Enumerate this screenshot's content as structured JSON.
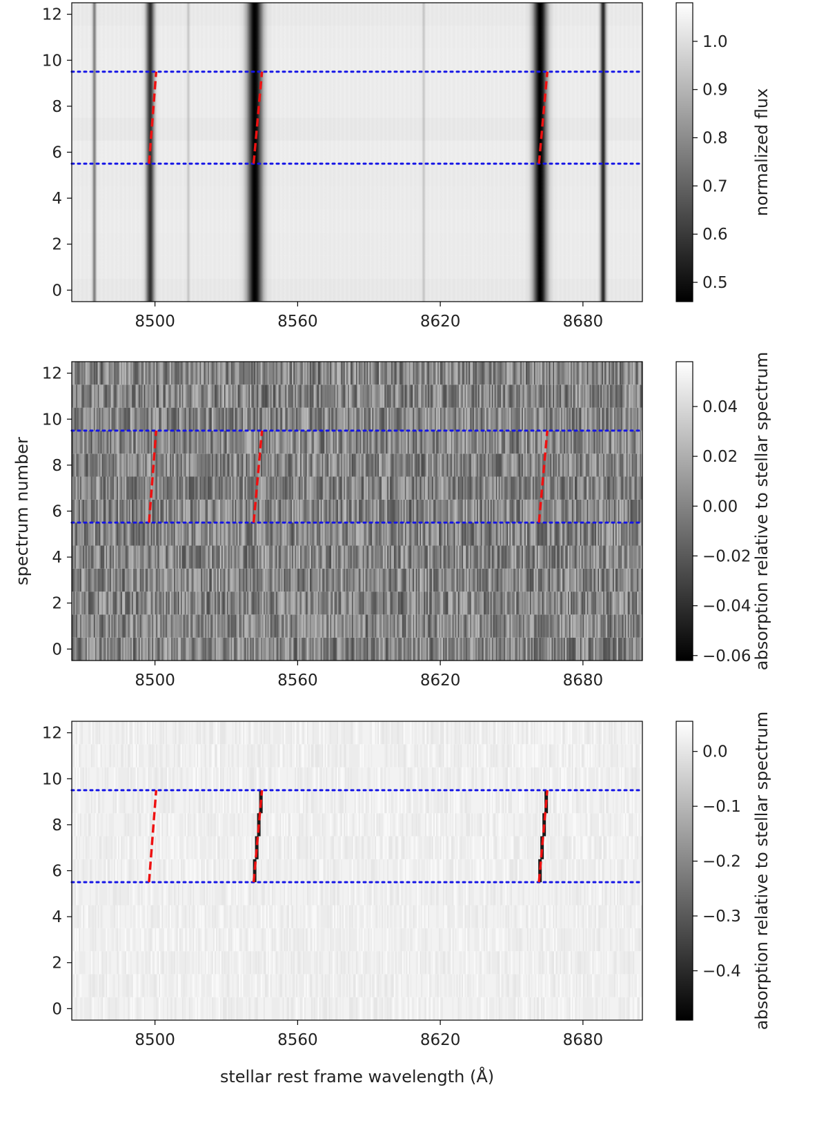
{
  "chart_data": [
    {
      "type": "heatmap",
      "panel": "top",
      "xlim": [
        8465,
        8705
      ],
      "ylim": [
        -0.5,
        12.5
      ],
      "xticks": [
        8500,
        8560,
        8620,
        8680
      ],
      "yticks": [
        0,
        2,
        4,
        6,
        8,
        10,
        12
      ],
      "xlabel": "",
      "ylabel": "",
      "colorbar": {
        "label": "normalized flux",
        "range": [
          0.46,
          1.08
        ],
        "ticks": [
          "0.5",
          "0.6",
          "0.7",
          "0.8",
          "0.9",
          "1.0"
        ]
      },
      "absorption_lines": [
        {
          "wavelength": 8474.5,
          "depth": 0.45,
          "width": 0.5
        },
        {
          "wavelength": 8498.0,
          "depth": 0.75,
          "width": 1.2
        },
        {
          "wavelength": 8514.0,
          "depth": 0.15,
          "width": 0.4
        },
        {
          "wavelength": 8542.0,
          "depth": 0.95,
          "width": 2.2
        },
        {
          "wavelength": 8613.0,
          "depth": 0.15,
          "width": 0.4
        },
        {
          "wavelength": 8662.0,
          "depth": 0.95,
          "width": 2.0
        },
        {
          "wavelength": 8688.5,
          "depth": 0.8,
          "width": 0.8
        }
      ],
      "horizontal_lines": [
        5.5,
        9.5
      ],
      "red_segments": [
        {
          "x": [
            8497.5,
            8500.5
          ],
          "y": [
            5.5,
            9.5
          ]
        },
        {
          "x": [
            8541.5,
            8545.0
          ],
          "y": [
            5.5,
            9.5
          ]
        },
        {
          "x": [
            8661.5,
            8665.0
          ],
          "y": [
            5.5,
            9.5
          ]
        }
      ]
    },
    {
      "type": "heatmap",
      "panel": "middle",
      "xlim": [
        8465,
        8705
      ],
      "ylim": [
        -0.5,
        12.5
      ],
      "xticks": [
        8500,
        8560,
        8620,
        8680
      ],
      "yticks": [
        0,
        2,
        4,
        6,
        8,
        10,
        12
      ],
      "xlabel": "",
      "ylabel": "spectrum number",
      "colorbar": {
        "label": "absorption relative to stellar spectrum",
        "range": [
          -0.062,
          0.058
        ],
        "ticks": [
          "−0.06",
          "−0.04",
          "−0.02",
          "0.00",
          "0.02",
          "0.04"
        ]
      },
      "horizontal_lines": [
        5.5,
        9.5
      ],
      "red_segments": [
        {
          "x": [
            8497.5,
            8500.5
          ],
          "y": [
            5.5,
            9.5
          ]
        },
        {
          "x": [
            8541.5,
            8545.0
          ],
          "y": [
            5.5,
            9.5
          ]
        },
        {
          "x": [
            8661.5,
            8665.0
          ],
          "y": [
            5.5,
            9.5
          ]
        }
      ]
    },
    {
      "type": "heatmap",
      "panel": "bottom",
      "xlim": [
        8465,
        8705
      ],
      "ylim": [
        -0.5,
        12.5
      ],
      "xticks": [
        8500,
        8560,
        8620,
        8680
      ],
      "yticks": [
        0,
        2,
        4,
        6,
        8,
        10,
        12
      ],
      "xlabel": "stellar rest frame wavelength (Å)",
      "ylabel": "",
      "colorbar": {
        "label": "absorption relative to stellar spectrum",
        "range": [
          -0.49,
          0.055
        ],
        "ticks": [
          "−0.4",
          "−0.3",
          "−0.2",
          "−0.1",
          "0.0"
        ]
      },
      "horizontal_lines": [
        5.5,
        9.5
      ],
      "red_segments": [
        {
          "x": [
            8497.5,
            8500.5
          ],
          "y": [
            5.5,
            9.5
          ]
        },
        {
          "x": [
            8541.5,
            8545.0
          ],
          "y": [
            5.5,
            9.5
          ]
        },
        {
          "x": [
            8661.5,
            8665.0
          ],
          "y": [
            5.5,
            9.5
          ]
        }
      ],
      "transit_absorption": [
        {
          "x": [
            8541.5,
            8545.0
          ],
          "y": [
            5.5,
            9.5
          ],
          "depth": -0.45
        },
        {
          "x": [
            8661.5,
            8665.0
          ],
          "y": [
            5.5,
            9.5
          ],
          "depth": -0.45
        }
      ]
    }
  ]
}
